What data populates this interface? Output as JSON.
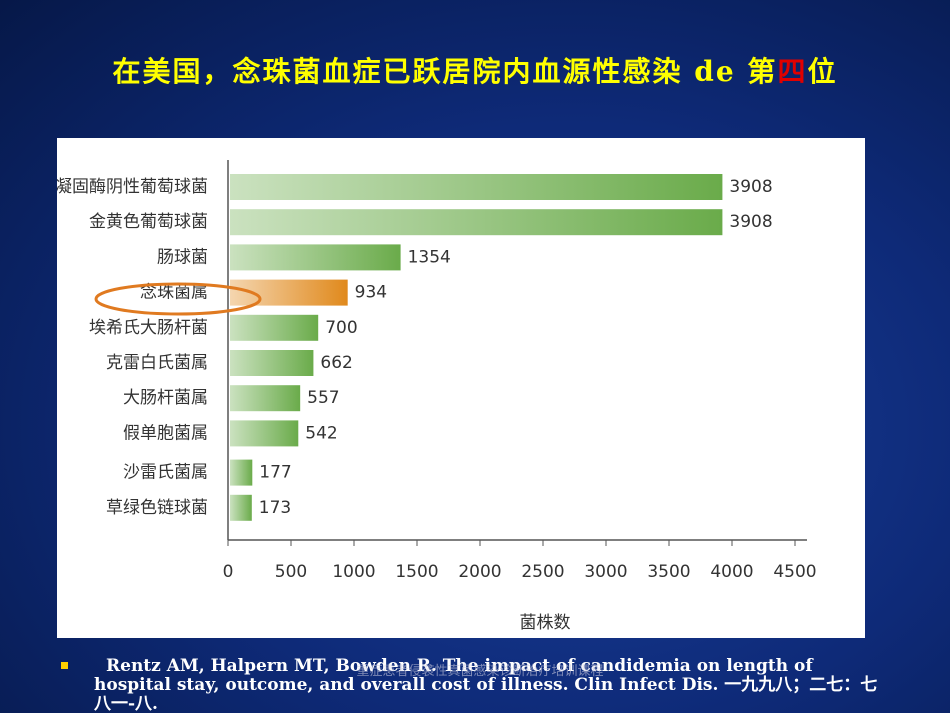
{
  "title_parts": [
    "在美国，念珠菌血症已跃居院内血源性感染 de 第",
    "四",
    "位"
  ],
  "chart_data": {
    "type": "hbar",
    "categories": [
      "凝固酶阴性葡萄球菌",
      "金黄色葡萄球菌",
      "肠球菌",
      "念珠菌属",
      "埃希氏大肠杆菌",
      "克雷白氏菌属",
      "大肠杆菌属",
      "假单胞菌属",
      "沙雷氏菌属",
      "草绿色链球菌"
    ],
    "values": [
      3908,
      3908,
      1354,
      934,
      700,
      662,
      557,
      542,
      177,
      173
    ],
    "colors": [
      "#6aab4a",
      "#6aab4a",
      "#6aab4a",
      "#e0891c",
      "#6aab4a",
      "#6aab4a",
      "#6aab4a",
      "#6aab4a",
      "#6aab4a",
      "#6aab4a"
    ],
    "xlim": [
      0,
      4500
    ],
    "xticks": [
      0,
      500,
      1000,
      1500,
      2000,
      2500,
      3000,
      3500,
      4000,
      4500
    ],
    "xlabel": "菌株数"
  },
  "footnote": "Rentz AM, Halpern MT, Bowden R. The impact of candidemia on length of hospital stay, outcome, and overall cost of illness. Clin Infect Dis. 一九九八；二七：七八一-八.",
  "watermark": "重症患者侵袭性真菌感染诊断治疗培训课程"
}
